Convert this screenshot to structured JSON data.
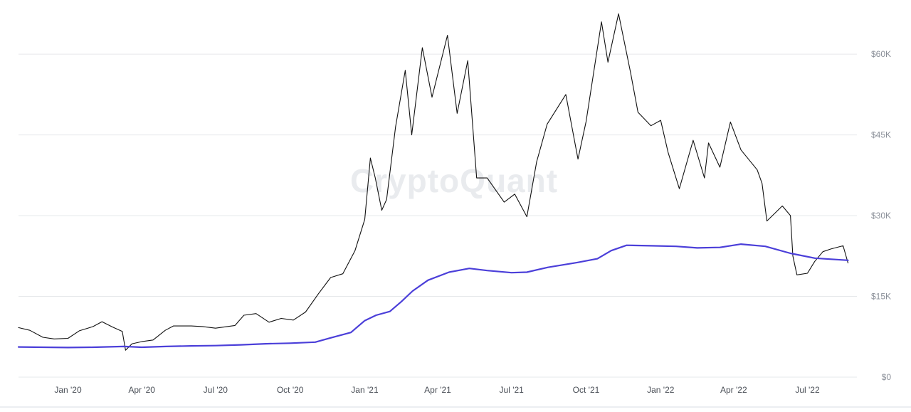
{
  "watermark": "CryptoQuant",
  "chart_data": {
    "type": "line",
    "x_type": "date",
    "xlim": [
      "2019-11-01",
      "2022-08-31"
    ],
    "ylim": [
      0,
      69000
    ],
    "y_ticks": [
      {
        "value": 0,
        "label": "$0"
      },
      {
        "value": 15000,
        "label": "$15K"
      },
      {
        "value": 30000,
        "label": "$30K"
      },
      {
        "value": 45000,
        "label": "$45K"
      },
      {
        "value": 60000,
        "label": "$60K"
      }
    ],
    "x_ticks": [
      {
        "date": "2020-01-01",
        "label": "Jan '20"
      },
      {
        "date": "2020-04-01",
        "label": "Apr '20"
      },
      {
        "date": "2020-07-01",
        "label": "Jul '20"
      },
      {
        "date": "2020-10-01",
        "label": "Oct '20"
      },
      {
        "date": "2021-01-01",
        "label": "Jan '21"
      },
      {
        "date": "2021-04-01",
        "label": "Apr '21"
      },
      {
        "date": "2021-07-01",
        "label": "Jul '21"
      },
      {
        "date": "2021-10-01",
        "label": "Oct '21"
      },
      {
        "date": "2022-01-01",
        "label": "Jan '22"
      },
      {
        "date": "2022-04-01",
        "label": "Apr '22"
      },
      {
        "date": "2022-07-01",
        "label": "Jul '22"
      }
    ],
    "grid": true,
    "legend": "none",
    "series": [
      {
        "color": "#111111",
        "points": [
          [
            "2019-11-01",
            9200
          ],
          [
            "2019-11-15",
            8700
          ],
          [
            "2019-12-01",
            7400
          ],
          [
            "2019-12-15",
            7100
          ],
          [
            "2020-01-01",
            7200
          ],
          [
            "2020-01-15",
            8600
          ],
          [
            "2020-02-01",
            9400
          ],
          [
            "2020-02-12",
            10300
          ],
          [
            "2020-02-25",
            9300
          ],
          [
            "2020-03-08",
            8500
          ],
          [
            "2020-03-12",
            5000
          ],
          [
            "2020-03-20",
            6200
          ],
          [
            "2020-04-01",
            6600
          ],
          [
            "2020-04-15",
            6900
          ],
          [
            "2020-04-30",
            8700
          ],
          [
            "2020-05-10",
            9500
          ],
          [
            "2020-06-01",
            9500
          ],
          [
            "2020-06-15",
            9400
          ],
          [
            "2020-07-01",
            9100
          ],
          [
            "2020-07-25",
            9600
          ],
          [
            "2020-08-05",
            11500
          ],
          [
            "2020-08-20",
            11800
          ],
          [
            "2020-09-05",
            10200
          ],
          [
            "2020-09-20",
            10900
          ],
          [
            "2020-10-05",
            10600
          ],
          [
            "2020-10-20",
            12100
          ],
          [
            "2020-11-05",
            15500
          ],
          [
            "2020-11-20",
            18500
          ],
          [
            "2020-12-05",
            19200
          ],
          [
            "2020-12-20",
            23500
          ],
          [
            "2021-01-01",
            29300
          ],
          [
            "2021-01-08",
            40700
          ],
          [
            "2021-01-14",
            37000
          ],
          [
            "2021-01-22",
            31000
          ],
          [
            "2021-01-28",
            33000
          ],
          [
            "2021-02-08",
            46500
          ],
          [
            "2021-02-20",
            57000
          ],
          [
            "2021-02-28",
            45000
          ],
          [
            "2021-03-13",
            61200
          ],
          [
            "2021-03-25",
            52000
          ],
          [
            "2021-04-13",
            63500
          ],
          [
            "2021-04-25",
            49000
          ],
          [
            "2021-05-08",
            58800
          ],
          [
            "2021-05-19",
            37000
          ],
          [
            "2021-06-01",
            37000
          ],
          [
            "2021-06-22",
            32500
          ],
          [
            "2021-07-05",
            34000
          ],
          [
            "2021-07-20",
            29800
          ],
          [
            "2021-08-01",
            40000
          ],
          [
            "2021-08-14",
            47000
          ],
          [
            "2021-09-06",
            52500
          ],
          [
            "2021-09-21",
            40500
          ],
          [
            "2021-10-01",
            47500
          ],
          [
            "2021-10-20",
            66000
          ],
          [
            "2021-10-28",
            58500
          ],
          [
            "2021-11-10",
            67500
          ],
          [
            "2021-11-25",
            56500
          ],
          [
            "2021-12-04",
            49200
          ],
          [
            "2021-12-20",
            46700
          ],
          [
            "2022-01-01",
            47700
          ],
          [
            "2022-01-10",
            41800
          ],
          [
            "2022-01-24",
            35000
          ],
          [
            "2022-02-10",
            44000
          ],
          [
            "2022-02-24",
            37000
          ],
          [
            "2022-03-01",
            43500
          ],
          [
            "2022-03-15",
            39000
          ],
          [
            "2022-03-28",
            47400
          ],
          [
            "2022-04-10",
            42200
          ],
          [
            "2022-04-30",
            38500
          ],
          [
            "2022-05-06",
            36000
          ],
          [
            "2022-05-12",
            29000
          ],
          [
            "2022-05-31",
            31800
          ],
          [
            "2022-06-10",
            30000
          ],
          [
            "2022-06-13",
            22500
          ],
          [
            "2022-06-18",
            19000
          ],
          [
            "2022-07-01",
            19300
          ],
          [
            "2022-07-10",
            21500
          ],
          [
            "2022-07-20",
            23300
          ],
          [
            "2022-07-30",
            23800
          ],
          [
            "2022-08-14",
            24400
          ],
          [
            "2022-08-20",
            21200
          ]
        ]
      },
      {
        "color": "#4b3fd9",
        "points": [
          [
            "2019-11-01",
            5600
          ],
          [
            "2019-12-01",
            5550
          ],
          [
            "2020-01-01",
            5500
          ],
          [
            "2020-02-01",
            5550
          ],
          [
            "2020-03-10",
            5700
          ],
          [
            "2020-04-01",
            5550
          ],
          [
            "2020-05-01",
            5700
          ],
          [
            "2020-06-01",
            5800
          ],
          [
            "2020-07-01",
            5850
          ],
          [
            "2020-08-01",
            6000
          ],
          [
            "2020-09-01",
            6200
          ],
          [
            "2020-10-01",
            6300
          ],
          [
            "2020-11-01",
            6500
          ],
          [
            "2020-11-20",
            7300
          ],
          [
            "2020-12-15",
            8300
          ],
          [
            "2021-01-01",
            10500
          ],
          [
            "2021-01-15",
            11500
          ],
          [
            "2021-02-01",
            12200
          ],
          [
            "2021-02-15",
            14000
          ],
          [
            "2021-03-01",
            16000
          ],
          [
            "2021-03-20",
            18000
          ],
          [
            "2021-04-15",
            19500
          ],
          [
            "2021-05-10",
            20200
          ],
          [
            "2021-06-01",
            19800
          ],
          [
            "2021-07-01",
            19400
          ],
          [
            "2021-07-20",
            19500
          ],
          [
            "2021-08-15",
            20400
          ],
          [
            "2021-09-20",
            21300
          ],
          [
            "2021-10-15",
            22000
          ],
          [
            "2021-11-01",
            23500
          ],
          [
            "2021-11-20",
            24500
          ],
          [
            "2021-12-20",
            24400
          ],
          [
            "2022-01-20",
            24300
          ],
          [
            "2022-02-15",
            24000
          ],
          [
            "2022-03-15",
            24100
          ],
          [
            "2022-04-10",
            24700
          ],
          [
            "2022-05-10",
            24300
          ],
          [
            "2022-06-10",
            23000
          ],
          [
            "2022-07-10",
            22100
          ],
          [
            "2022-08-20",
            21700
          ]
        ]
      }
    ]
  }
}
